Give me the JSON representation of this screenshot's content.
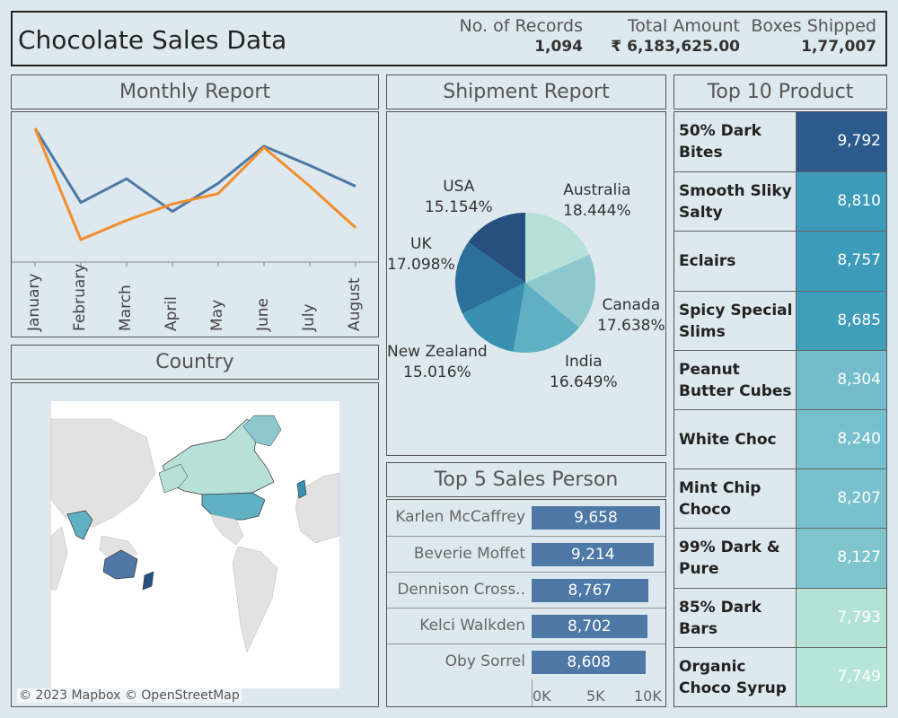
{
  "header": {
    "title": "Chocolate Sales Data",
    "kpis": [
      {
        "label": "No. of Records",
        "value": "1,094"
      },
      {
        "label": "Total Amount",
        "value": "₹ 6,183,625.00"
      },
      {
        "label": "Boxes Shipped",
        "value": "1,77,007"
      }
    ]
  },
  "monthly": {
    "title": "Monthly Report",
    "chart_data": {
      "type": "line",
      "categories": [
        "January",
        "February",
        "March",
        "April",
        "May",
        "June",
        "July",
        "August"
      ],
      "series": [
        {
          "values": [
            100,
            50,
            66,
            44,
            63,
            88,
            75,
            61
          ]
        },
        {
          "values": [
            100,
            25,
            38,
            49,
            56,
            87,
            61,
            33
          ]
        }
      ],
      "colors": [
        "#4e79a7",
        "#f28e2b"
      ],
      "grid": true
    }
  },
  "country": {
    "title": "Country",
    "attribution": "© 2023 Mapbox © OpenStreetMap"
  },
  "shipment": {
    "title": "Shipment Report",
    "chart_data": {
      "type": "pie",
      "categories": [
        "Australia",
        "Canada",
        "India",
        "New Zealand",
        "UK",
        "USA"
      ],
      "values": [
        18.444,
        17.638,
        16.649,
        15.016,
        17.098,
        15.154
      ],
      "labels": [
        "18.444%",
        "17.638%",
        "16.649%",
        "15.016%",
        "17.098%",
        "15.154%"
      ],
      "colors": [
        "#b6e0d8",
        "#8cc8ce",
        "#5fb0c2",
        "#3990b0",
        "#2c6f99",
        "#27507f"
      ]
    }
  },
  "sales_persons": {
    "title": "Top 5 Sales Person",
    "chart_data": {
      "type": "bar",
      "categories": [
        "Karlen McCaffrey",
        "Beverie Moffet",
        "Dennison Cross..",
        "Kelci Walkden",
        "Oby Sorrel"
      ],
      "values": [
        9658,
        9214,
        8767,
        8702,
        8608
      ],
      "labels": [
        "9,658",
        "9,214",
        "8,767",
        "8,702",
        "8,608"
      ],
      "xlim": [
        0,
        10000
      ],
      "xticks": [
        "0K",
        "5K",
        "10K"
      ]
    }
  },
  "products": {
    "title": "Top 10 Product",
    "chart_data": {
      "type": "table",
      "categories": [
        "50% Dark Bites",
        "Smooth Sliky Salty",
        "Eclairs",
        "Spicy Special Slims",
        "Peanut Butter Cubes",
        "White Choc",
        "Mint Chip Choco",
        "99% Dark & Pure",
        "85% Dark Bars",
        "Organic Choco Syrup"
      ],
      "values": [
        9792,
        8810,
        8757,
        8685,
        8304,
        8240,
        8207,
        8127,
        7793,
        7749
      ],
      "labels": [
        "9,792",
        "8,810",
        "8,757",
        "8,685",
        "8,304",
        "8,240",
        "8,207",
        "8,127",
        "7,793",
        "7,749"
      ],
      "colors": [
        "#2c5a8c",
        "#3c9bb8",
        "#3c9bb8",
        "#3f9eba",
        "#73bccb",
        "#76bfcc",
        "#79c1cd",
        "#7fc5ce",
        "#b4e3d6",
        "#b7e5d8"
      ]
    }
  }
}
